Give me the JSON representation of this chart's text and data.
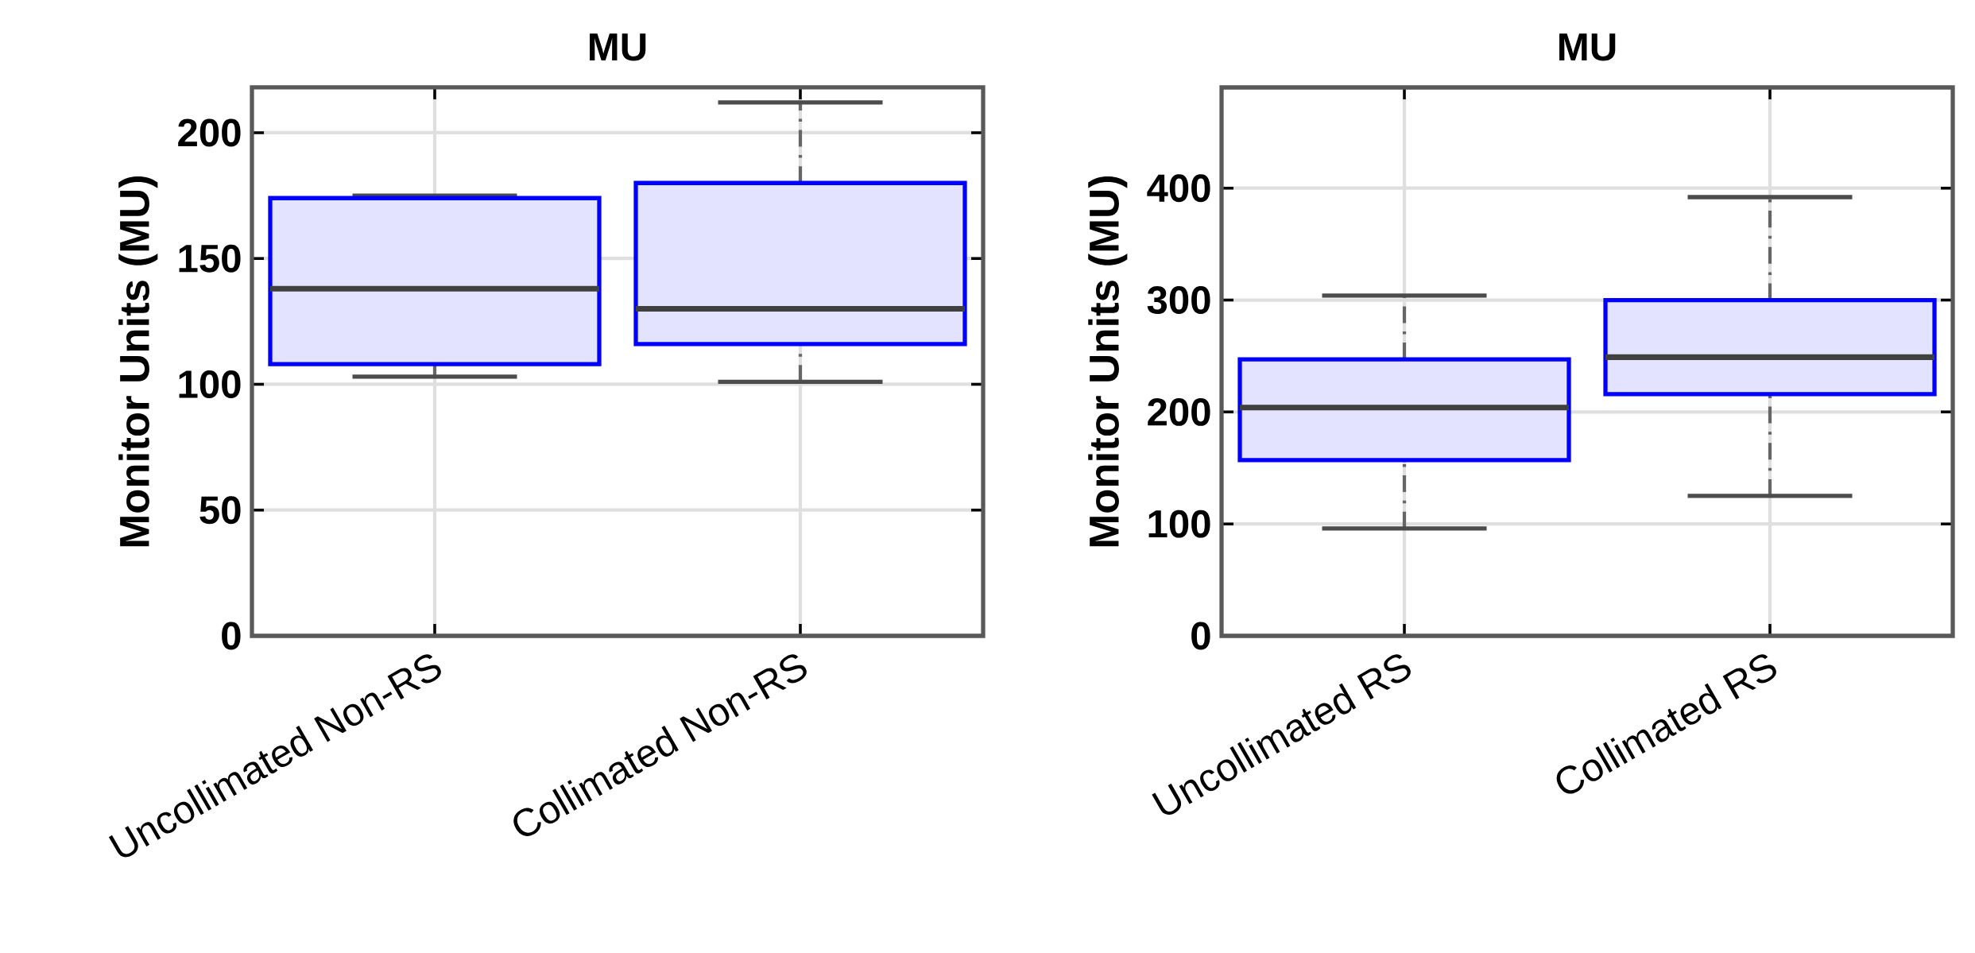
{
  "chart_data": [
    {
      "type": "box",
      "title": "MU",
      "ylabel": "Monitor Units (MU)",
      "categories": [
        "Uncollimated Non-RS",
        "Collimated Non-RS"
      ],
      "color": "#0000ff",
      "boxes": [
        {
          "low": 103,
          "q1": 108,
          "median": 138,
          "q3": 174,
          "high": 175
        },
        {
          "low": 101,
          "q1": 116,
          "median": 130,
          "q3": 180,
          "high": 212
        }
      ],
      "ylim": [
        0,
        218
      ],
      "yticks": [
        0,
        50,
        100,
        150,
        200
      ],
      "grid": true
    },
    {
      "type": "box",
      "title": "MU",
      "ylabel": "Monitor Units (MU)",
      "categories": [
        "Uncollimated RS",
        "Collimated RS"
      ],
      "color": "#0000ff",
      "boxes": [
        {
          "low": 96,
          "q1": 157,
          "median": 204,
          "q3": 247,
          "high": 304
        },
        {
          "low": 125,
          "q1": 216,
          "median": 249,
          "q3": 300,
          "high": 392
        }
      ],
      "ylim": [
        0,
        490
      ],
      "yticks": [
        0,
        100,
        200,
        300,
        400
      ],
      "grid": true
    }
  ]
}
